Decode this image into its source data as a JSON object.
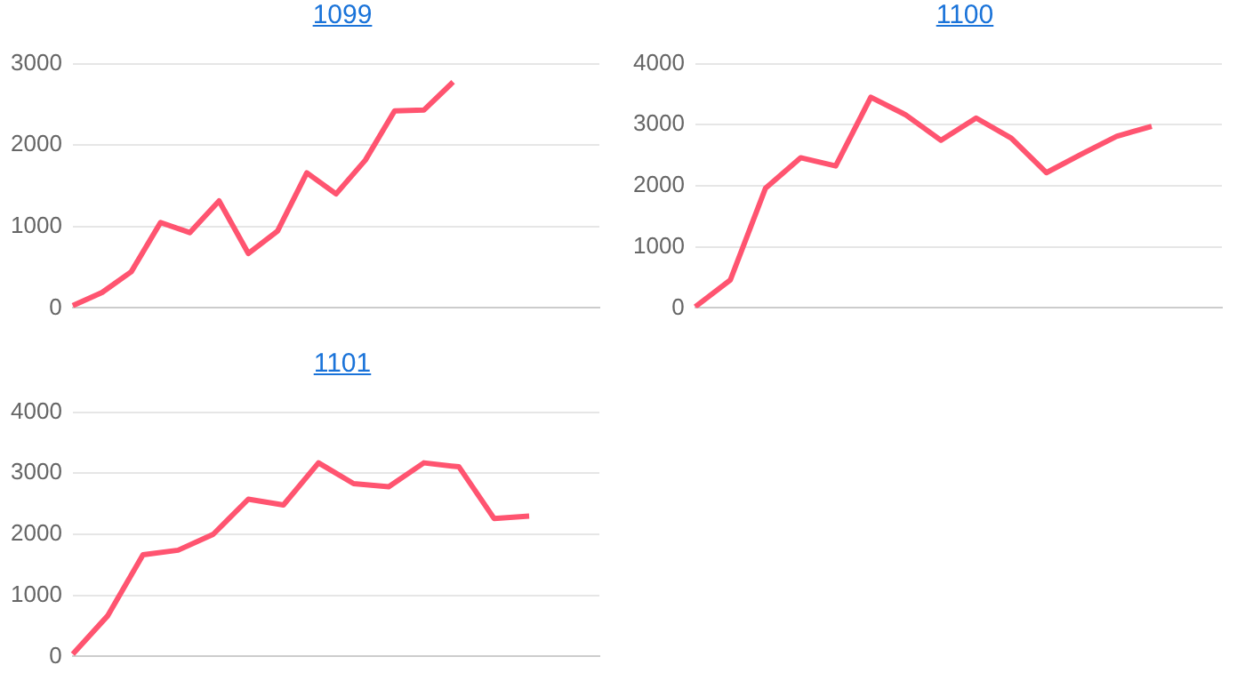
{
  "chart_data": [
    {
      "type": "line",
      "title": "1099",
      "categories": [
        null,
        null,
        null,
        null,
        null,
        null,
        null,
        null,
        null,
        null,
        null,
        null,
        null,
        null,
        null,
        null,
        null,
        null,
        null
      ],
      "series": [
        {
          "color": "#ff5470",
          "values": [
            30,
            190,
            445,
            1050,
            925,
            1315,
            670,
            945,
            1660,
            1400,
            1815,
            2420,
            2430,
            2775,
            null,
            null,
            null,
            null,
            null
          ]
        }
      ],
      "ylim": [
        0,
        3000
      ],
      "yticks": [
        0,
        1000,
        2000,
        3000
      ],
      "grid": "y",
      "legend": false,
      "marker": "none",
      "tick_labels": "y"
    },
    {
      "type": "line",
      "title": "1100",
      "categories": [
        null,
        null,
        null,
        null,
        null,
        null,
        null,
        null,
        null,
        null,
        null,
        null,
        null,
        null,
        null,
        null
      ],
      "series": [
        {
          "color": "#ff5470",
          "values": [
            20,
            460,
            1960,
            2460,
            2325,
            3450,
            3160,
            2745,
            3110,
            2780,
            2215,
            2520,
            2810,
            2975,
            null,
            null
          ]
        }
      ],
      "ylim": [
        0,
        4000
      ],
      "yticks": [
        0,
        1000,
        2000,
        3000,
        4000
      ],
      "grid": "y",
      "legend": false,
      "marker": "none",
      "tick_labels": "y"
    },
    {
      "type": "line",
      "title": "1101",
      "categories": [
        null,
        null,
        null,
        null,
        null,
        null,
        null,
        null,
        null,
        null,
        null,
        null,
        null,
        null,
        null,
        null
      ],
      "series": [
        {
          "color": "#ff5470",
          "values": [
            40,
            670,
            1665,
            1740,
            2000,
            2575,
            2480,
            3170,
            2830,
            2780,
            3170,
            3105,
            2260,
            2300,
            null,
            null
          ]
        }
      ],
      "ylim": [
        0,
        4000
      ],
      "yticks": [
        0,
        1000,
        2000,
        3000,
        4000
      ],
      "grid": "y",
      "legend": false,
      "marker": "none",
      "tick_labels": "y"
    }
  ]
}
